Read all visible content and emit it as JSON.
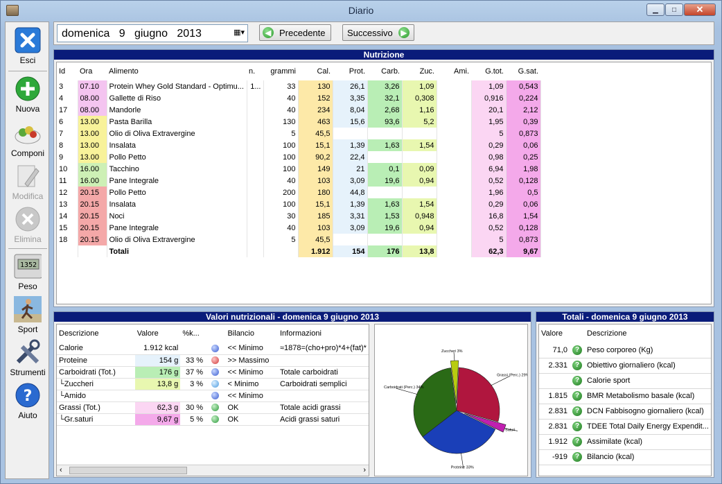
{
  "window": {
    "title": "Diario"
  },
  "sidebar": [
    {
      "label": "Esci",
      "icon": "close-x-icon",
      "disabled": false
    },
    {
      "label": "Nuova",
      "icon": "plus-icon",
      "disabled": false
    },
    {
      "label": "Componi",
      "icon": "salad-icon",
      "disabled": false
    },
    {
      "label": "Modifica",
      "icon": "edit-pencil-icon",
      "disabled": true
    },
    {
      "label": "Elimina",
      "icon": "delete-x-icon",
      "disabled": true
    },
    {
      "label": "Peso",
      "icon": "scale-icon",
      "disabled": false
    },
    {
      "label": "Sport",
      "icon": "runner-icon",
      "disabled": false
    },
    {
      "label": "Strumenti",
      "icon": "tools-icon",
      "disabled": false
    },
    {
      "label": "Aiuto",
      "icon": "help-icon",
      "disabled": false
    }
  ],
  "scale_reading": "1352",
  "date": {
    "weekday": "domenica",
    "day": "9",
    "month": "giugno",
    "year": "2013"
  },
  "nav": {
    "prev": "Precedente",
    "next": "Successivo"
  },
  "nutrition": {
    "title": "Nutrizione",
    "headers": [
      "Id",
      "Ora",
      "Alimento",
      "n.",
      "grammi",
      "Cal.",
      "Prot.",
      "Carb.",
      "Zuc.",
      "Ami.",
      "G.tot.",
      "G.sat."
    ],
    "rows": [
      [
        "3",
        "07.10",
        "Protein Whey Gold Standard - Optimu...",
        "1...",
        "33",
        "130",
        "26,1",
        "3,26",
        "1,09",
        "",
        "1,09",
        "0,543"
      ],
      [
        "4",
        "08.00",
        "Gallette di Riso",
        "",
        "40",
        "152",
        "3,35",
        "32,1",
        "0,308",
        "",
        "0,916",
        "0,224"
      ],
      [
        "17",
        "08.00",
        "Mandorle",
        "",
        "40",
        "234",
        "8,04",
        "2,68",
        "1,16",
        "",
        "20,1",
        "2,12"
      ],
      [
        "6",
        "13.00",
        "Pasta Barilla",
        "",
        "130",
        "463",
        "15,6",
        "93,6",
        "5,2",
        "",
        "1,95",
        "0,39"
      ],
      [
        "7",
        "13.00",
        "Olio di Oliva Extravergine",
        "",
        "5",
        "45,5",
        "",
        "",
        "",
        "",
        "5",
        "0,873"
      ],
      [
        "8",
        "13.00",
        "Insalata",
        "",
        "100",
        "15,1",
        "1,39",
        "1,63",
        "1,54",
        "",
        "0,29",
        "0,06"
      ],
      [
        "9",
        "13.00",
        "Pollo Petto",
        "",
        "100",
        "90,2",
        "22,4",
        "",
        "",
        "",
        "0,98",
        "0,25"
      ],
      [
        "10",
        "16.00",
        "Tacchino",
        "",
        "100",
        "149",
        "21",
        "0,1",
        "0,09",
        "",
        "6,94",
        "1,98"
      ],
      [
        "11",
        "16.00",
        "Pane Integrale",
        "",
        "40",
        "103",
        "3,09",
        "19,6",
        "0,94",
        "",
        "0,52",
        "0,128"
      ],
      [
        "12",
        "20.15",
        "Pollo Petto",
        "",
        "200",
        "180",
        "44,8",
        "",
        "",
        "",
        "1,96",
        "0,5"
      ],
      [
        "13",
        "20.15",
        "Insalata",
        "",
        "100",
        "15,1",
        "1,39",
        "1,63",
        "1,54",
        "",
        "0,29",
        "0,06"
      ],
      [
        "14",
        "20.15",
        "Noci",
        "",
        "30",
        "185",
        "3,31",
        "1,53",
        "0,948",
        "",
        "16,8",
        "1,54"
      ],
      [
        "15",
        "20.15",
        "Pane Integrale",
        "",
        "40",
        "103",
        "3,09",
        "19,6",
        "0,94",
        "",
        "0,52",
        "0,128"
      ],
      [
        "18",
        "20.15",
        "Olio di Oliva Extravergine",
        "",
        "5",
        "45,5",
        "",
        "",
        "",
        "",
        "5",
        "0,873"
      ]
    ],
    "totals": [
      "",
      "",
      "Totali",
      "",
      "",
      "1.912",
      "154",
      "176",
      "13,8",
      "",
      "62,3",
      "9,67"
    ]
  },
  "values": {
    "title": "Valori nutrizionali - domenica 9 giugno 2013",
    "headers": [
      "Descrizione",
      "Valore",
      "%k...",
      "",
      "Bilancio",
      "Informazioni"
    ],
    "rows": [
      {
        "desc": "Calorie",
        "val": "1.912 kcal",
        "pct": "",
        "dot": "blue",
        "bil": "<< Minimo",
        "info": "≈1878=(cho+pro)*4+(fat)*",
        "color": ""
      },
      {
        "desc": "Proteine",
        "val": "154 g",
        "pct": "33 %",
        "dot": "red",
        "bil": ">> Massimo",
        "info": "",
        "color": "#e6f2fb"
      },
      {
        "desc": "Carboidrati (Tot.)",
        "val": "176 g",
        "pct": "37 %",
        "dot": "blue",
        "bil": "<< Minimo",
        "info": "Totale carboidrati",
        "color": "#b9eeb5"
      },
      {
        "desc": "└Zuccheri",
        "val": "13,8 g",
        "pct": "3 %",
        "dot": "lblue",
        "bil": "< Minimo",
        "info": "Carboidrati semplici",
        "color": "#e8f7b0"
      },
      {
        "desc": "└Amido",
        "val": "",
        "pct": "",
        "dot": "blue",
        "bil": "<< Minimo",
        "info": "",
        "color": ""
      },
      {
        "desc": "Grassi (Tot.)",
        "val": "62,3 g",
        "pct": "30 %",
        "dot": "green",
        "bil": "OK",
        "info": "Totale acidi grassi",
        "color": "#fbd6f3"
      },
      {
        "desc": "└Gr.saturi",
        "val": "9,67 g",
        "pct": "5 %",
        "dot": "green",
        "bil": "OK",
        "info": "Acidi grassi saturi",
        "color": "#f4a9ea"
      }
    ]
  },
  "pie": {
    "slices": [
      {
        "label": "Grassi (Perc.) 29%",
        "value": 29,
        "color": "#b0163e"
      },
      {
        "label": "Saturi",
        "value": 3,
        "color": "#c020b0"
      },
      {
        "label": "Proteine 33%",
        "value": 33,
        "color": "#1a3fb8"
      },
      {
        "label": "Carboidrati (Perc.) 34%",
        "value": 34,
        "color": "#2a6a16"
      },
      {
        "label": "Zuccheri 3%",
        "value": 3,
        "color": "#b8cc10"
      }
    ]
  },
  "totals": {
    "title": "Totali - domenica 9 giugno 2013",
    "headers": [
      "Valore",
      "Descrizione"
    ],
    "rows": [
      {
        "val": "71,0",
        "desc": "Peso corporeo (Kg)"
      },
      {
        "val": "2.331",
        "desc": "Obiettivo giornaliero (kcal)"
      },
      {
        "val": "",
        "desc": "Calorie sport"
      },
      {
        "val": "1.815",
        "desc": "BMR Metabolismo basale (kcal)"
      },
      {
        "val": "2.831",
        "desc": "DCN Fabbisogno giornaliero (kcal)"
      },
      {
        "val": "2.831",
        "desc": "TDEE Total Daily Energy Expendit..."
      },
      {
        "val": "1.912",
        "desc": "Assimilate (kcal)"
      },
      {
        "val": "-919",
        "desc": "Bilancio (kcal)"
      }
    ]
  }
}
